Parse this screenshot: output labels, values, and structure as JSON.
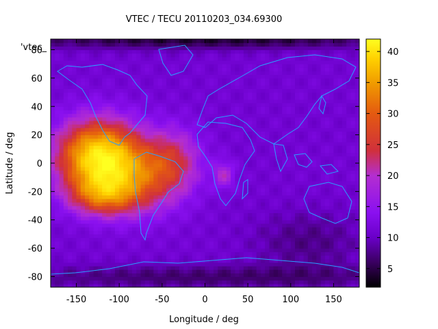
{
  "chart_data": {
    "type": "heatmap",
    "title": "VTEC / TECU 20110203_034.69300",
    "xlabel": "Longitude / deg",
    "ylabel": "Latitude / deg",
    "key_label": "'vtec_",
    "xlim": [
      -180,
      180
    ],
    "ylim": [
      -87.5,
      87.5
    ],
    "xticks": [
      -150,
      -100,
      -50,
      0,
      50,
      100,
      150
    ],
    "yticks": [
      -80,
      -60,
      -40,
      -20,
      0,
      20,
      40,
      60,
      80
    ],
    "colorbar": {
      "range": [
        2,
        42
      ],
      "ticks": [
        5,
        10,
        15,
        20,
        25,
        30,
        35,
        40
      ]
    },
    "grid": false,
    "colors": {
      "palette": [
        "#000000",
        "#3a0060",
        "#6a00c8",
        "#8a10f0",
        "#b42ed0",
        "#d0303c",
        "#e45a10",
        "#f09a00",
        "#ffd000",
        "#ffff20"
      ],
      "coastline": "#2aa0ff"
    },
    "field": {
      "background": 12,
      "blobs": [
        {
          "lon": -125,
          "lat": 5,
          "sx": 34,
          "sy": 18,
          "amp": 26
        },
        {
          "lon": -75,
          "lat": -10,
          "sx": 35,
          "sy": 18,
          "amp": 12
        },
        {
          "lon": -35,
          "lat": 3,
          "sx": 22,
          "sy": 16,
          "amp": 8
        },
        {
          "lon": -120,
          "lat": -23,
          "sx": 28,
          "sy": 10,
          "amp": 12
        },
        {
          "lon": 22,
          "lat": -8,
          "sx": 9,
          "sy": 7,
          "amp": 7
        },
        {
          "lon": 0,
          "lat": -80,
          "sx": 180,
          "sy": 6,
          "amp": -5
        },
        {
          "lon": 120,
          "lat": -55,
          "sx": 45,
          "sy": 15,
          "amp": -4
        },
        {
          "lon": 0,
          "lat": 88,
          "sx": 180,
          "sy": 5,
          "amp": -8
        }
      ]
    }
  }
}
